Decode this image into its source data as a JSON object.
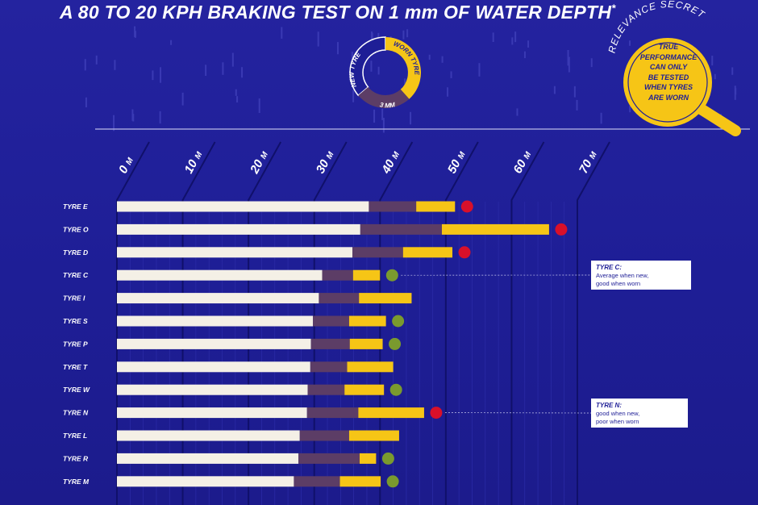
{
  "title": "A 80 TO 20 KPH BRAKING TEST ON 1 mm OF WATER DEPTH",
  "title_sup": "*",
  "donut": {
    "label_new": "NEW TYRE",
    "label_worn": "WORN TYRE",
    "label_depth": "3 MM"
  },
  "relevance": {
    "arc_text": "RELEVANCE SECRET",
    "lines": [
      "TRUE",
      "PERFORMANCE",
      "CAN ONLY",
      "BE TESTED",
      "WHEN TYRES",
      "ARE WORN"
    ]
  },
  "colors": {
    "background": "#1f1f9a",
    "new": "#f4f0e6",
    "mid": "#5c3d66",
    "worn": "#f6c516",
    "good": "#7a9a2e",
    "poor": "#d8102a"
  },
  "chart_data": {
    "type": "bar",
    "stacked": true,
    "unit": "M",
    "xlim": [
      0,
      70
    ],
    "xticks": [
      0,
      10,
      20,
      30,
      40,
      50,
      60,
      70
    ],
    "categories": [
      "TYRE E",
      "TYRE O",
      "TYRE D",
      "TYRE C",
      "TYRE I",
      "TYRE S",
      "TYRE P",
      "TYRE T",
      "TYRE W",
      "TYRE N",
      "TYRE L",
      "TYRE R",
      "TYRE M"
    ],
    "segments": [
      {
        "key": "new",
        "ends": [
          38.3,
          37.0,
          35.8,
          31.2,
          30.7,
          29.8,
          29.5,
          29.4,
          29.0,
          28.9,
          27.8,
          27.6,
          26.9
        ]
      },
      {
        "key": "mid",
        "ends": [
          45.5,
          49.4,
          43.5,
          35.9,
          36.8,
          35.3,
          35.4,
          35.0,
          34.6,
          36.7,
          35.3,
          36.9,
          33.9
        ]
      },
      {
        "key": "worn",
        "ends": [
          51.4,
          65.7,
          51.0,
          40.0,
          44.8,
          40.9,
          40.4,
          42.0,
          40.6,
          46.7,
          42.9,
          39.4,
          40.1
        ]
      }
    ],
    "markers": [
      "poor",
      "poor",
      "poor",
      "good",
      "none",
      "good",
      "good",
      "none",
      "good",
      "poor",
      "none",
      "good",
      "good"
    ],
    "annotations": [
      {
        "title": "TYRE C:",
        "lines": [
          "Average when new,",
          "good when worn"
        ]
      },
      {
        "title": "TYRE N:",
        "lines": [
          "good when new,",
          "poor when worn"
        ]
      }
    ]
  }
}
